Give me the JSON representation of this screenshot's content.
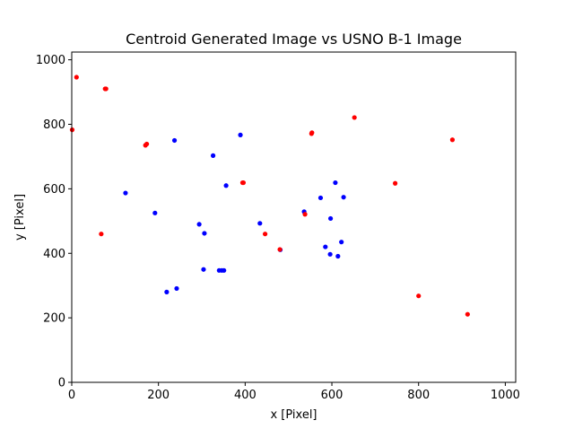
{
  "chart_data": {
    "type": "scatter",
    "title": "Centroid Generated Image vs USNO B-1 Image",
    "xlabel": "x [Pixel]",
    "ylabel": "y [Pixel]",
    "xlim": [
      0,
      1024
    ],
    "ylim": [
      0,
      1024
    ],
    "xticks": [
      0,
      200,
      400,
      600,
      800,
      1000
    ],
    "yticks": [
      0,
      200,
      400,
      600,
      800,
      1000
    ],
    "grid": false,
    "series": [
      {
        "color": "#0000ff",
        "x": [
          237,
          389,
          326,
          124,
          356,
          192,
          294,
          306,
          304,
          340,
          346,
          351,
          219,
          242,
          434,
          481,
          536,
          574,
          608,
          627,
          597,
          585,
          596,
          614,
          622
        ],
        "y": [
          750,
          767,
          703,
          587,
          610,
          525,
          490,
          462,
          350,
          347,
          347,
          347,
          280,
          291,
          493,
          411,
          529,
          572,
          619,
          574,
          508,
          420,
          397,
          391,
          435
        ]
      },
      {
        "color": "#ff0000",
        "x": [
          11,
          77,
          79,
          1,
          170,
          173,
          394,
          396,
          68,
          446,
          480,
          538,
          553,
          554,
          652,
          746,
          878,
          800,
          913
        ],
        "y": [
          946,
          910,
          910,
          783,
          735,
          739,
          619,
          619,
          460,
          460,
          412,
          521,
          771,
          774,
          821,
          617,
          752,
          268,
          211
        ]
      }
    ]
  }
}
